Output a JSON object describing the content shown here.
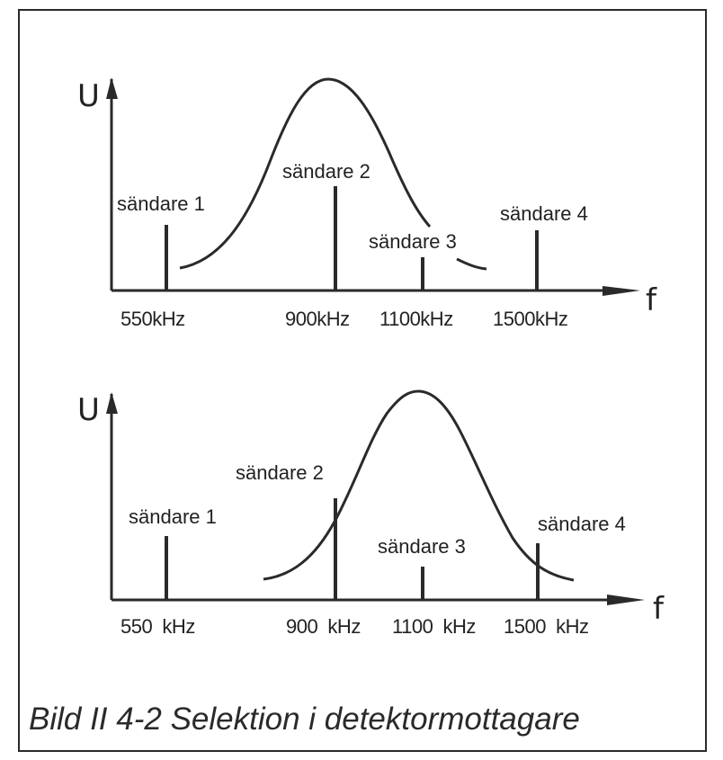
{
  "caption": "Bild II 4-2  Selektion i detektormottagare",
  "axes": {
    "y_label": "U",
    "x_label": "f"
  },
  "colors": {
    "ink": "#2a2a2a",
    "paper": "#ffffff"
  },
  "panels": [
    {
      "id": "top",
      "stations": [
        {
          "name": "sändare 1",
          "freq_label": "550kHz",
          "freq_khz": 550,
          "level": 0.31
        },
        {
          "name": "sändare 2",
          "freq_label": "900kHz",
          "freq_khz": 900,
          "level": 0.48
        },
        {
          "name": "sändare 3",
          "freq_label": "1100kHz",
          "freq_khz": 1100,
          "level": 0.15
        },
        {
          "name": "sändare 4",
          "freq_label": "1500kHz",
          "freq_khz": 1500,
          "level": 0.28
        }
      ],
      "tuned_center_khz": 900
    },
    {
      "id": "bottom",
      "stations": [
        {
          "name": "sändare 1",
          "freq_label": "550  kHz",
          "freq_khz": 550,
          "level": 0.29
        },
        {
          "name": "sändare 2",
          "freq_label": "900  kHz",
          "freq_khz": 900,
          "level": 0.48
        },
        {
          "name": "sändare 3",
          "freq_label": "1100  kHz",
          "freq_khz": 1100,
          "level": 0.14
        },
        {
          "name": "sändare 4",
          "freq_label": "1500  kHz",
          "freq_khz": 1500,
          "level": 0.25
        }
      ],
      "tuned_center_khz": 1100
    }
  ]
}
